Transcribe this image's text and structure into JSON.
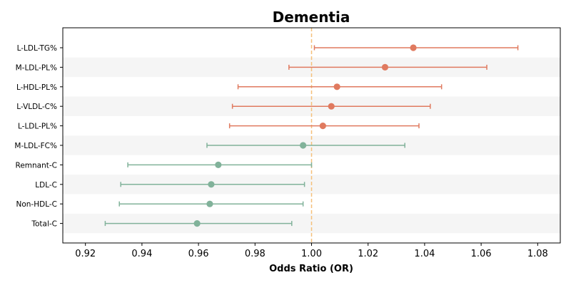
{
  "chart_data": {
    "type": "forest",
    "title": "Dementia",
    "xlabel": "Odds Ratio (OR)",
    "xlim": [
      0.912,
      1.088
    ],
    "xticks": [
      "0.92",
      "0.94",
      "0.96",
      "0.98",
      "1.00",
      "1.02",
      "1.04",
      "1.06",
      "1.08"
    ],
    "reference_line": 1.0,
    "reference_color": "#f5c07a",
    "colors": {
      "positive": "#e07a5f",
      "negative": "#81b29a",
      "band": "#f5f5f5"
    },
    "rows": [
      {
        "label": "L-LDL-TG%",
        "or": 1.036,
        "lo": 1.001,
        "hi": 1.073
      },
      {
        "label": "M-LDL-PL%",
        "or": 1.026,
        "lo": 0.992,
        "hi": 1.062
      },
      {
        "label": "L-HDL-PL%",
        "or": 1.009,
        "lo": 0.974,
        "hi": 1.046
      },
      {
        "label": "L-VLDL-C%",
        "or": 1.007,
        "lo": 0.972,
        "hi": 1.042
      },
      {
        "label": "L-LDL-PL%",
        "or": 1.004,
        "lo": 0.971,
        "hi": 1.038
      },
      {
        "label": "M-LDL-FC%",
        "or": 0.997,
        "lo": 0.963,
        "hi": 1.033
      },
      {
        "label": "Remnant-C",
        "or": 0.967,
        "lo": 0.935,
        "hi": 1.0
      },
      {
        "label": "LDL-C",
        "or": 0.9645,
        "lo": 0.9325,
        "hi": 0.9975
      },
      {
        "label": "Non-HDL-C",
        "or": 0.964,
        "lo": 0.932,
        "hi": 0.997
      },
      {
        "label": "Total-C",
        "or": 0.9595,
        "lo": 0.927,
        "hi": 0.993
      }
    ]
  }
}
